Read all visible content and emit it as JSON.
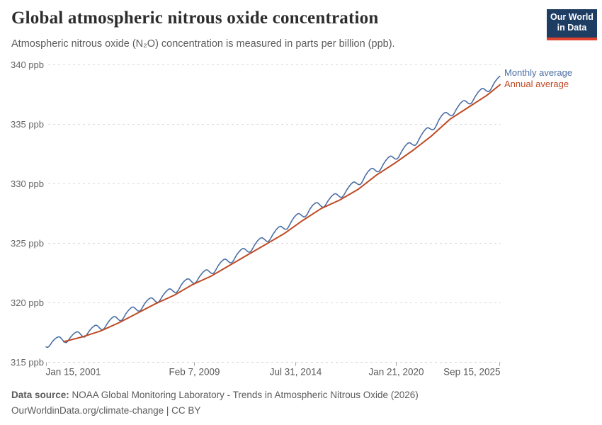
{
  "header": {
    "title": "Global atmospheric nitrous oxide concentration",
    "subtitle": "Atmospheric nitrous oxide (N₂O) concentration is measured in parts per billion (ppb).",
    "logo": {
      "line1": "Our World",
      "line2": "in Data",
      "bg_color": "#1d3d63",
      "accent_color": "#e0422e"
    }
  },
  "legend": {
    "items": [
      {
        "label": "Monthly average",
        "color": "#4C6FA5"
      },
      {
        "label": "Annual average",
        "color": "#BE4A24"
      }
    ]
  },
  "chart_data": {
    "type": "line",
    "title": "Global atmospheric nitrous oxide concentration",
    "ylabel": "ppb",
    "ylim": [
      315,
      340
    ],
    "xlim": [
      2001.0,
      2025.72
    ],
    "grid": true,
    "legend_position": "right-of-line-ends",
    "y_ticks": [
      {
        "value": 340,
        "label": "340 ppb"
      },
      {
        "value": 335,
        "label": "335 ppb"
      },
      {
        "value": 330,
        "label": "330 ppb"
      },
      {
        "value": 325,
        "label": "325 ppb"
      },
      {
        "value": 320,
        "label": "320 ppb"
      },
      {
        "value": 315,
        "label": "315 ppb"
      }
    ],
    "x_ticks": [
      {
        "t": 2001.04,
        "label": "Jan 15, 2001"
      },
      {
        "t": 2009.1,
        "label": "Feb 7, 2009"
      },
      {
        "t": 2014.58,
        "label": "Jul 31, 2014"
      },
      {
        "t": 2020.06,
        "label": "Jan 21, 2020"
      },
      {
        "t": 2025.7,
        "label": "Sep 15, 2025"
      }
    ],
    "series": [
      {
        "id": "monthly",
        "name": "Monthly average",
        "color": "#4C6FA5",
        "start_month": "2001-01",
        "end_month": "2025-09",
        "derivation": "annual_trend_plus_seasonal",
        "seasonal_offsets_by_month": [
          -0.25,
          -0.33,
          -0.27,
          -0.12,
          0.04,
          0.15,
          0.25,
          0.3,
          0.33,
          0.28,
          0.12,
          -0.08
        ]
      },
      {
        "id": "annual",
        "name": "Annual average",
        "color": "#BE4A24",
        "years": [
          2001,
          2002,
          2003,
          2004,
          2005,
          2006,
          2007,
          2008,
          2009,
          2010,
          2011,
          2012,
          2013,
          2014,
          2015,
          2016,
          2017,
          2018,
          2019,
          2020,
          2021,
          2022,
          2023,
          2024,
          2025
        ],
        "values": [
          316.7,
          317.1,
          317.6,
          318.3,
          319.1,
          319.9,
          320.6,
          321.5,
          322.2,
          323.1,
          324.0,
          324.9,
          325.8,
          326.9,
          327.9,
          328.6,
          329.5,
          330.7,
          331.7,
          332.8,
          334.0,
          335.4,
          336.4,
          337.4,
          338.3
        ],
        "last_point_t": 2025.72
      }
    ]
  },
  "footer": {
    "source_label": "Data source:",
    "source_text": "NOAA Global Monitoring Laboratory - Trends in Atmospheric Nitrous Oxide (2026)",
    "license_line": "OurWorldinData.org/climate-change | CC BY"
  }
}
